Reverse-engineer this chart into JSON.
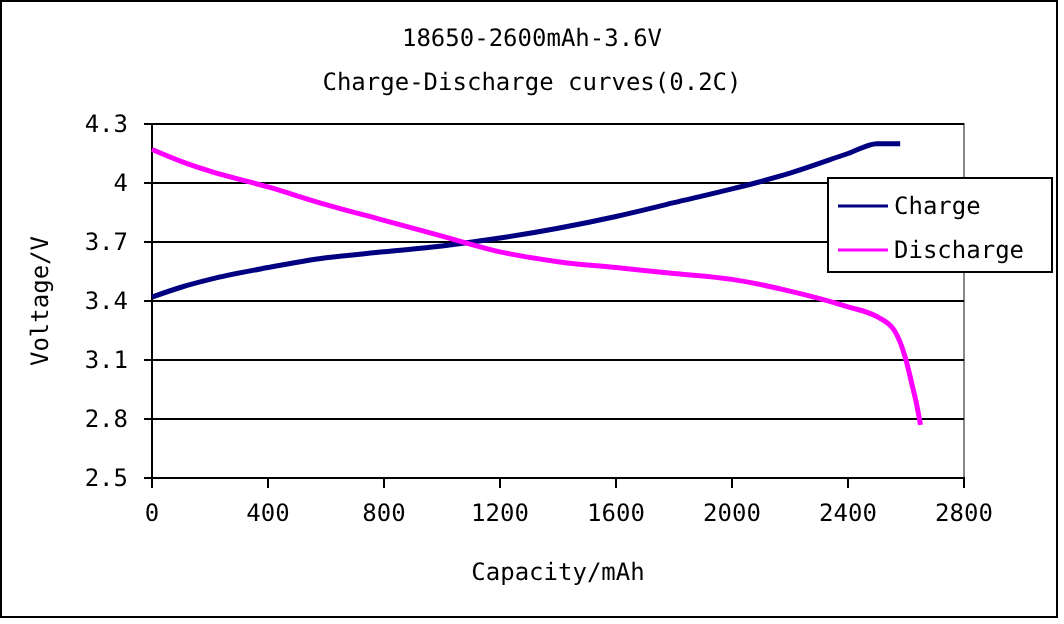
{
  "chart_data": {
    "type": "line",
    "title": "18650-2600mAh-3.6V",
    "subtitle": "Charge-Discharge curves(0.2C)",
    "xlabel": "Capacity/mAh",
    "ylabel": "Voltage/V",
    "xlim": [
      0,
      2800
    ],
    "xticks": [
      0,
      400,
      800,
      1200,
      1600,
      2000,
      2400,
      2800
    ],
    "ylim": [
      2.5,
      4.3
    ],
    "yticks": [
      2.5,
      2.8,
      3.1,
      3.4,
      3.7,
      4,
      4.3
    ],
    "grid": "y",
    "legend": "right",
    "series": [
      {
        "name": "Charge",
        "color": "#000080",
        "x": [
          0,
          100,
          200,
          400,
          600,
          800,
          1000,
          1200,
          1400,
          1600,
          1800,
          2000,
          2200,
          2400,
          2500,
          2580
        ],
        "values": [
          3.42,
          3.47,
          3.51,
          3.57,
          3.62,
          3.65,
          3.68,
          3.72,
          3.77,
          3.83,
          3.9,
          3.97,
          4.05,
          4.15,
          4.2,
          4.2
        ]
      },
      {
        "name": "Discharge",
        "color": "#ff00ff",
        "x": [
          0,
          100,
          200,
          400,
          600,
          800,
          1000,
          1200,
          1400,
          1600,
          1800,
          2000,
          2200,
          2400,
          2500,
          2560,
          2600,
          2620,
          2640,
          2650
        ],
        "values": [
          4.17,
          4.11,
          4.06,
          3.98,
          3.89,
          3.81,
          3.73,
          3.65,
          3.6,
          3.57,
          3.54,
          3.51,
          3.45,
          3.37,
          3.32,
          3.25,
          3.1,
          2.98,
          2.85,
          2.77
        ]
      }
    ]
  }
}
